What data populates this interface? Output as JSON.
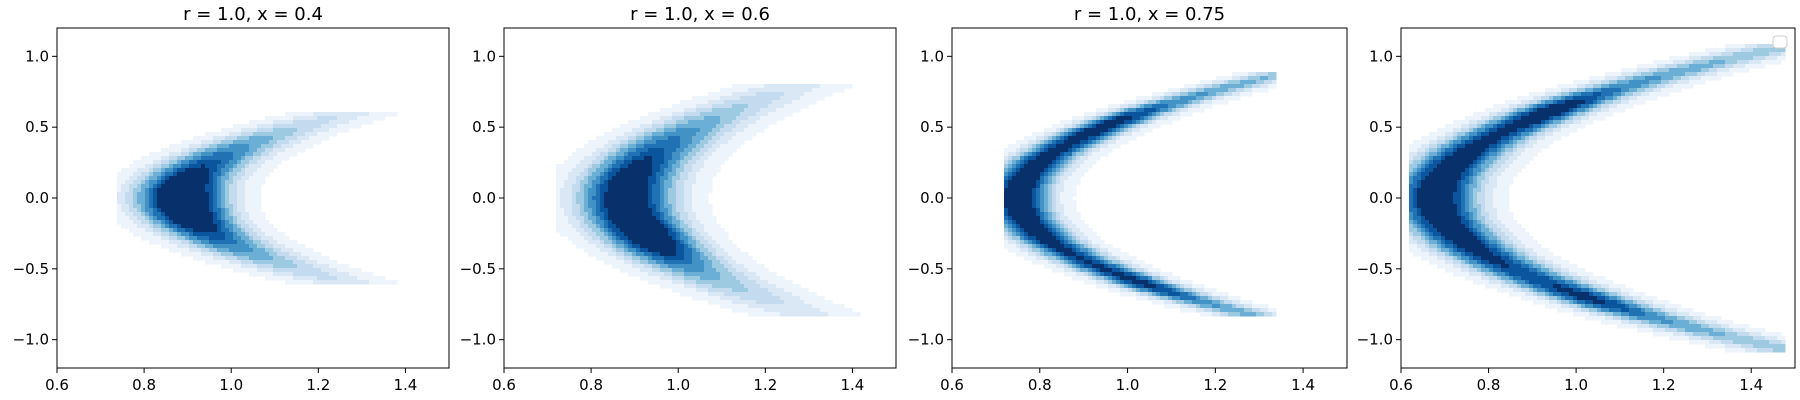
{
  "figure": {
    "panels": [
      {
        "title": "r = 1.0, x = 0.4"
      },
      {
        "title": "r = 1.0, x = 0.6"
      },
      {
        "title": "r = 1.0, x = 0.75"
      },
      {
        "title": ""
      }
    ]
  },
  "chart_data": [
    {
      "type": "heatmap",
      "subtype": "kde-contour",
      "title": "r = 1.0, x = 0.4",
      "xlabel": "",
      "ylabel": "",
      "xlim": [
        0.6,
        1.5
      ],
      "ylim": [
        -1.2,
        1.2
      ],
      "xticks": [
        0.6,
        0.8,
        1.0,
        1.2,
        1.4
      ],
      "yticks": [
        -1.0,
        -0.5,
        0.0,
        0.5,
        1.0
      ],
      "xtick_labels": [
        "0.6",
        "0.8",
        "1.0",
        "1.2",
        "1.4"
      ],
      "ytick_labels": [
        "−1.0",
        "−0.5",
        "0.0",
        "0.5",
        "1.0"
      ],
      "grid": false,
      "colormap": "Blues",
      "shape": "crescent",
      "levels": 9,
      "density": {
        "center_x": 1.0,
        "center_y": 0.0,
        "span_y": 0.32,
        "x_offset": 0.12,
        "curvature": 0.9,
        "width": 0.07
      },
      "extent": {
        "x": [
          0.74,
          1.41
        ],
        "y": [
          -0.62,
          0.62
        ]
      },
      "peaks": [
        {
          "x": 1.0,
          "y": -0.05
        }
      ],
      "legend": null
    },
    {
      "type": "heatmap",
      "subtype": "kde-contour",
      "title": "r = 1.0, x = 0.6",
      "xlabel": "",
      "ylabel": "",
      "xlim": [
        0.6,
        1.5
      ],
      "ylim": [
        -1.2,
        1.2
      ],
      "xticks": [
        0.6,
        0.8,
        1.0,
        1.2,
        1.4
      ],
      "yticks": [
        -1.0,
        -0.5,
        0.0,
        0.5,
        1.0
      ],
      "xtick_labels": [
        "0.6",
        "0.8",
        "1.0",
        "1.2",
        "1.4"
      ],
      "ytick_labels": [
        "−1.0",
        "−0.5",
        "0.0",
        "0.5",
        "1.0"
      ],
      "grid": false,
      "colormap": "Blues",
      "shape": "crescent",
      "levels": 9,
      "density": {
        "center_x": 1.0,
        "center_y": 0.0,
        "span_y": 0.42,
        "x_offset": 0.12,
        "curvature": 0.9,
        "width": 0.075
      },
      "extent": {
        "x": [
          0.72,
          1.42
        ],
        "y": [
          -0.82,
          0.8
        ]
      },
      "peaks": [
        {
          "x": 0.98,
          "y": -0.3
        }
      ],
      "legend": null
    },
    {
      "type": "heatmap",
      "subtype": "kde-contour",
      "title": "r = 1.0, x = 0.75",
      "xlabel": "",
      "ylabel": "",
      "xlim": [
        0.6,
        1.5
      ],
      "ylim": [
        -1.2,
        1.2
      ],
      "xticks": [
        0.6,
        0.8,
        1.0,
        1.2,
        1.4
      ],
      "yticks": [
        -1.0,
        -0.5,
        0.0,
        0.5,
        1.0
      ],
      "xtick_labels": [
        "0.6",
        "0.8",
        "1.0",
        "1.2",
        "1.4"
      ],
      "ytick_labels": [
        "−1.0",
        "−0.5",
        "0.0",
        "0.5",
        "1.0"
      ],
      "grid": false,
      "colormap": "Blues",
      "shape": "crescent",
      "levels": 9,
      "density": {
        "center_x": 1.05,
        "center_y": 0.0,
        "span_y": 0.62,
        "x_offset": 0.3,
        "curvature": 1.0,
        "width": 0.05
      },
      "extent": {
        "x": [
          0.72,
          1.34
        ],
        "y": [
          -0.82,
          0.9
        ]
      },
      "peaks": [
        {
          "x": 0.93,
          "y": 0.6
        },
        {
          "x": 1.05,
          "y": -0.62
        }
      ],
      "legend": null
    },
    {
      "type": "heatmap",
      "subtype": "kde-contour",
      "title": "",
      "xlabel": "",
      "ylabel": "",
      "xlim": [
        0.6,
        1.5
      ],
      "ylim": [
        -1.2,
        1.2
      ],
      "xticks": [
        0.6,
        0.8,
        1.0,
        1.2,
        1.4
      ],
      "yticks": [
        -1.0,
        -0.5,
        0.0,
        0.5,
        1.0
      ],
      "xtick_labels": [
        "0.6",
        "0.8",
        "1.0",
        "1.2",
        "1.4"
      ],
      "ytick_labels": [
        "−1.0",
        "−0.5",
        "0.0",
        "0.5",
        "1.0"
      ],
      "grid": false,
      "colormap": "Blues",
      "shape": "crescent",
      "levels": 9,
      "density": {
        "center_x": 1.04,
        "center_y": 0.0,
        "span_y": 0.72,
        "x_offset": 0.36,
        "curvature": 1.0,
        "width": 0.065
      },
      "extent": {
        "x": [
          0.62,
          1.48
        ],
        "y": [
          -1.1,
          1.1
        ]
      },
      "peaks": [
        {
          "x": 0.95,
          "y": 0.65
        },
        {
          "x": 1.05,
          "y": -0.72
        }
      ],
      "legend": "top-right (empty)"
    }
  ]
}
